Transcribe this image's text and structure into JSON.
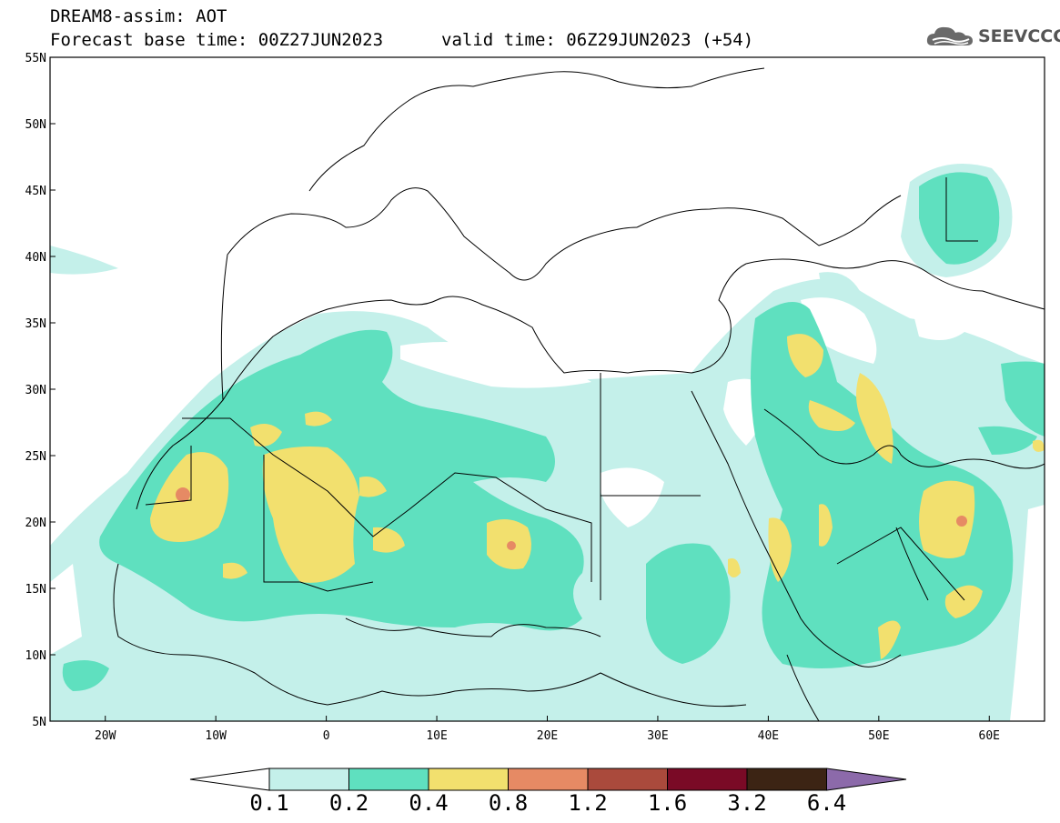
{
  "header": {
    "title": "DREAM8-assim: AOT",
    "forecast_base": "Forecast base time: 00Z27JUN2023",
    "valid_time": "valid time: 06Z29JUN2023 (+54)"
  },
  "logo": {
    "text": "SEEVCCC",
    "icon": "cloud-icon"
  },
  "map": {
    "lat_labels": [
      "55N",
      "50N",
      "45N",
      "40N",
      "35N",
      "30N",
      "25N",
      "20N",
      "15N",
      "10N",
      "5N"
    ],
    "lon_labels": [
      "20W",
      "10W",
      "0",
      "10E",
      "20E",
      "30E",
      "40E",
      "50E",
      "60E"
    ],
    "lat_range": [
      5,
      55
    ],
    "lon_range": [
      -25,
      65
    ]
  },
  "colorbar": {
    "labels": [
      "0.1",
      "0.2",
      "0.4",
      "0.8",
      "1.2",
      "1.6",
      "3.2",
      "6.4"
    ],
    "colors": [
      "#ffffff",
      "#c4f0ea",
      "#5fe0bf",
      "#f2e06e",
      "#e68a64",
      "#aa4a3c",
      "#7a0a26",
      "#3c2414",
      "#8c6aaa"
    ]
  },
  "legend_levels": {
    "lt_0.1": "#ffffff",
    "0.1-0.2": "#c4f0ea",
    "0.2-0.4": "#5fe0bf",
    "0.4-0.8": "#f2e06e",
    "0.8-1.2": "#e68a64"
  }
}
